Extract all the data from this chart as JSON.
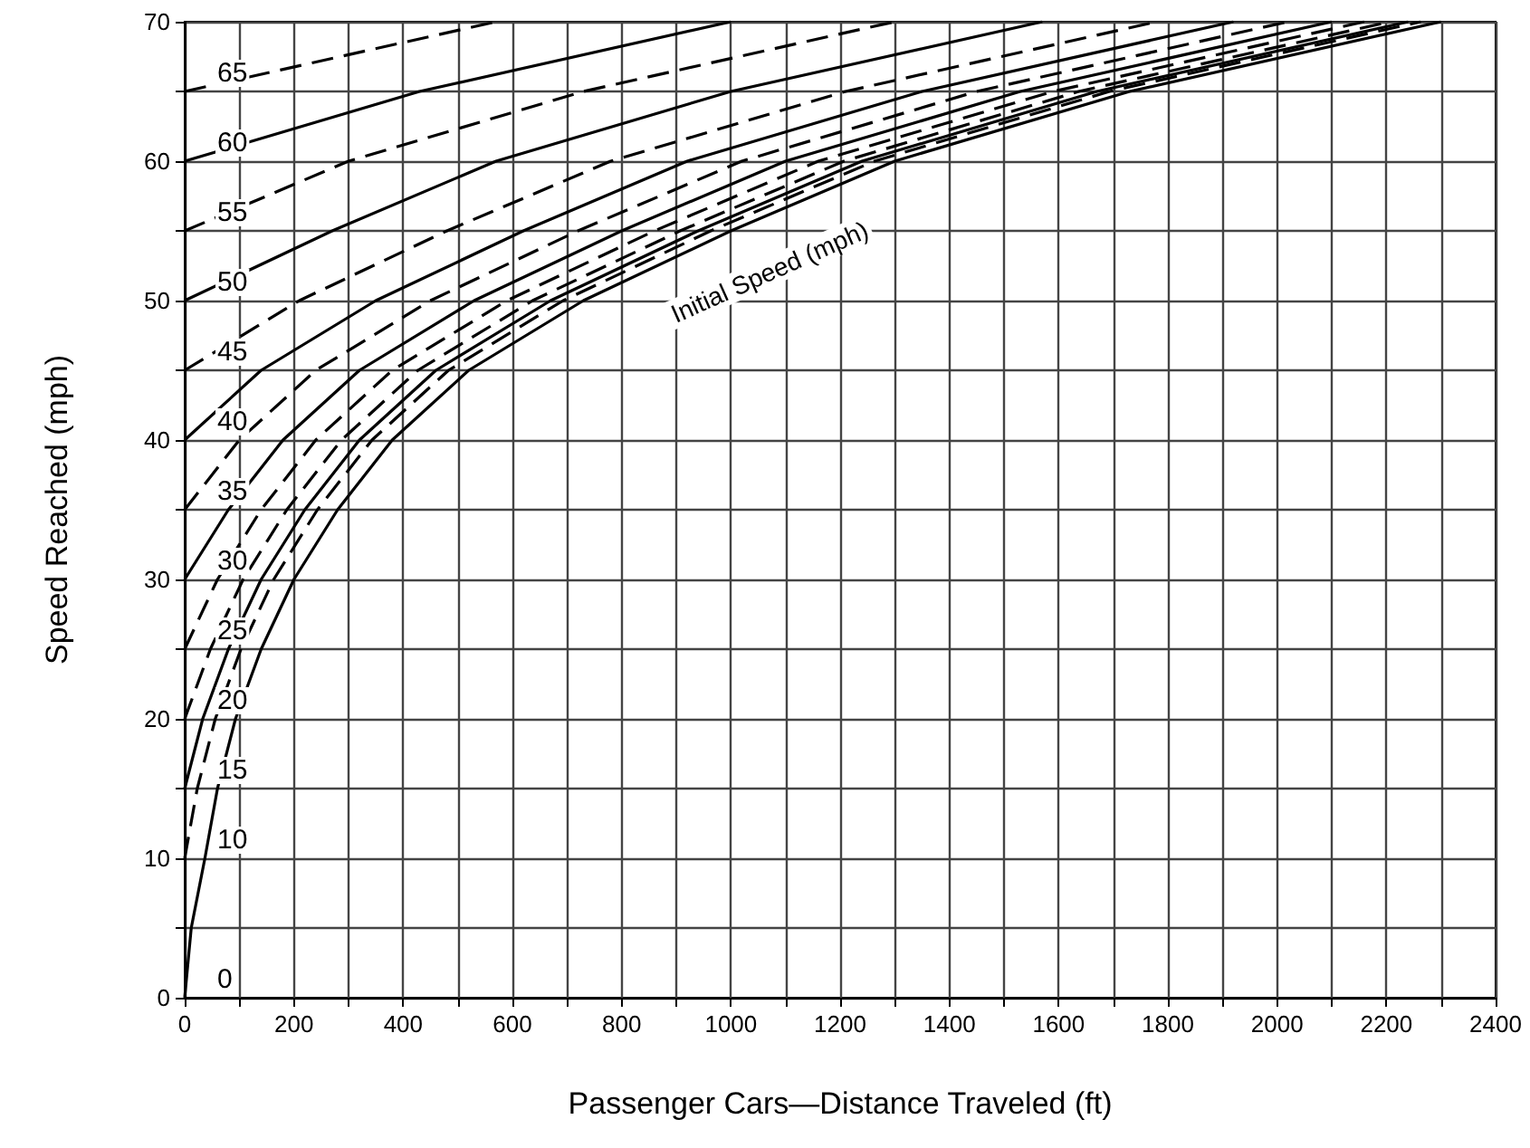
{
  "chart_data": {
    "type": "line",
    "xlabel": "Passenger Cars—Distance Traveled (ft)",
    "ylabel": "Speed Reached (mph)",
    "xlim": [
      0,
      2400
    ],
    "ylim": [
      0,
      70
    ],
    "xticks": [
      0,
      {
        "value": 100,
        "label": null
      },
      200,
      {
        "value": 300,
        "label": null
      },
      400,
      {
        "value": 500,
        "label": null
      },
      600,
      {
        "value": 700,
        "label": null
      },
      800,
      {
        "value": 900,
        "label": null
      },
      1000,
      {
        "value": 1100,
        "label": null
      },
      1200,
      {
        "value": 1300,
        "label": null
      },
      1400,
      {
        "value": 1500,
        "label": null
      },
      1600,
      {
        "value": 1700,
        "label": null
      },
      1800,
      {
        "value": 1900,
        "label": null
      },
      2000,
      {
        "value": 2100,
        "label": null
      },
      2200,
      {
        "value": 2300,
        "label": null
      },
      2400
    ],
    "yticks": [
      0,
      {
        "value": 5,
        "label": null
      },
      10,
      {
        "value": 15,
        "label": null
      },
      20,
      {
        "value": 25,
        "label": null
      },
      30,
      {
        "value": 35,
        "label": null
      },
      40,
      {
        "value": 45,
        "label": null
      },
      50,
      {
        "value": 55,
        "label": null
      },
      60,
      {
        "value": 65,
        "label": null
      },
      70
    ],
    "grid": true,
    "legend": false,
    "marker": "none",
    "annotations": [
      "Initial Speed (mph)"
    ],
    "series": [
      {
        "name": "0",
        "color": "#000000",
        "line_style": "solid",
        "x": [
          0,
          12,
          37,
          60,
          93,
          140,
          200,
          280,
          380,
          520,
          730,
          1000,
          1300,
          1730,
          2300
        ],
        "values": [
          0,
          5,
          10,
          15,
          20,
          25,
          30,
          35,
          40,
          45,
          50,
          55,
          60,
          65,
          70
        ]
      },
      {
        "name": "10",
        "color": "#000000",
        "line_style": "dashed",
        "x": [
          0,
          23,
          56,
          103,
          163,
          243,
          343,
          483,
          693,
          963,
          1263,
          1693,
          2263
        ],
        "values": [
          10,
          15,
          20,
          25,
          30,
          35,
          40,
          45,
          50,
          55,
          60,
          65,
          70
        ]
      },
      {
        "name": "15",
        "color": "#000000",
        "line_style": "solid",
        "x": [
          0,
          33,
          80,
          140,
          220,
          320,
          460,
          670,
          940,
          1240,
          1670,
          2240
        ],
        "values": [
          15,
          20,
          25,
          30,
          35,
          40,
          45,
          50,
          55,
          60,
          65,
          70
        ]
      },
      {
        "name": "20",
        "color": "#000000",
        "line_style": "dashed",
        "x": [
          0,
          47,
          107,
          187,
          287,
          427,
          637,
          907,
          1207,
          1637,
          2207
        ],
        "values": [
          20,
          25,
          30,
          35,
          40,
          45,
          50,
          55,
          60,
          65,
          70
        ]
      },
      {
        "name": "25",
        "color": "#000000",
        "line_style": "dashed",
        "x": [
          0,
          60,
          140,
          240,
          380,
          590,
          860,
          1160,
          1590,
          2160
        ],
        "values": [
          25,
          30,
          35,
          40,
          45,
          50,
          55,
          60,
          65,
          70
        ]
      },
      {
        "name": "30",
        "color": "#000000",
        "line_style": "solid",
        "x": [
          0,
          80,
          180,
          320,
          530,
          800,
          1100,
          1530,
          2100
        ],
        "values": [
          30,
          35,
          40,
          45,
          50,
          55,
          60,
          65,
          70
        ]
      },
      {
        "name": "35",
        "color": "#000000",
        "line_style": "dashed",
        "x": [
          0,
          100,
          240,
          450,
          720,
          1020,
          1450,
          2020
        ],
        "values": [
          35,
          40,
          45,
          50,
          55,
          60,
          65,
          70
        ]
      },
      {
        "name": "40",
        "color": "#000000",
        "line_style": "solid",
        "x": [
          0,
          140,
          350,
          620,
          920,
          1350,
          1920
        ],
        "values": [
          40,
          45,
          50,
          55,
          60,
          65,
          70
        ]
      },
      {
        "name": "45",
        "color": "#000000",
        "line_style": "dashed",
        "x": [
          0,
          210,
          480,
          780,
          1210,
          1780
        ],
        "values": [
          45,
          50,
          55,
          60,
          65,
          70
        ]
      },
      {
        "name": "50",
        "color": "#000000",
        "line_style": "solid",
        "x": [
          0,
          270,
          570,
          1000,
          1570
        ],
        "values": [
          50,
          55,
          60,
          65,
          70
        ]
      },
      {
        "name": "55",
        "color": "#000000",
        "line_style": "dashed",
        "x": [
          0,
          300,
          730,
          1300
        ],
        "values": [
          55,
          60,
          65,
          70
        ]
      },
      {
        "name": "60",
        "color": "#000000",
        "line_style": "solid",
        "x": [
          0,
          430,
          1000
        ],
        "values": [
          60,
          65,
          70
        ]
      },
      {
        "name": "65",
        "color": "#000000",
        "line_style": "dashed",
        "x": [
          0,
          570
        ],
        "values": [
          65,
          70
        ]
      }
    ]
  }
}
